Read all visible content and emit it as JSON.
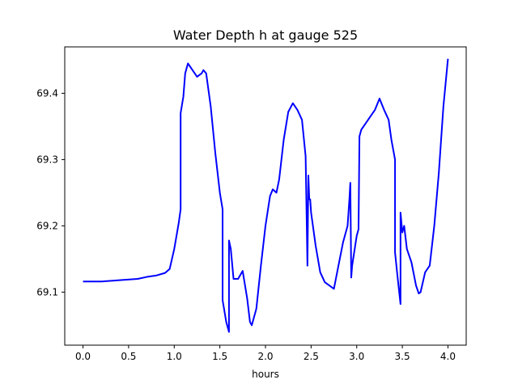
{
  "chart_data": {
    "type": "line",
    "title": "Water Depth h at gauge 525",
    "xlabel": "hours",
    "ylabel": "",
    "xlim": [
      -0.2,
      4.2
    ],
    "ylim": [
      69.02,
      69.47
    ],
    "x_ticks": [
      0.0,
      0.5,
      1.0,
      1.5,
      2.0,
      2.5,
      3.0,
      3.5,
      4.0
    ],
    "x_tick_labels": [
      "0.0",
      "0.5",
      "1.0",
      "1.5",
      "2.0",
      "2.5",
      "3.0",
      "3.5",
      "4.0"
    ],
    "y_ticks": [
      69.1,
      69.2,
      69.3,
      69.4
    ],
    "y_tick_labels": [
      "69.1",
      "69.2",
      "69.3",
      "69.4"
    ],
    "grid": false,
    "legend": "none",
    "line_color": "#0000ff",
    "series": [
      {
        "x": [
          0.0,
          0.2,
          0.4,
          0.6,
          0.7,
          0.8,
          0.9,
          0.95,
          1.0,
          1.05,
          1.07,
          1.07,
          1.1,
          1.12,
          1.15,
          1.2,
          1.25,
          1.3,
          1.32,
          1.35,
          1.4,
          1.45,
          1.5,
          1.53,
          1.53,
          1.57,
          1.6,
          1.6,
          1.62,
          1.65,
          1.7,
          1.75,
          1.8,
          1.83,
          1.85,
          1.9,
          1.95,
          2.0,
          2.05,
          2.08,
          2.12,
          2.15,
          2.2,
          2.25,
          2.3,
          2.35,
          2.4,
          2.44,
          2.46,
          2.47,
          2.48,
          2.49,
          2.5,
          2.55,
          2.6,
          2.65,
          2.7,
          2.75,
          2.8,
          2.85,
          2.9,
          2.92,
          2.93,
          2.94,
          2.95,
          3.0,
          3.02,
          3.03,
          3.05,
          3.1,
          3.15,
          3.2,
          3.25,
          3.3,
          3.35,
          3.38,
          3.42,
          3.42,
          3.45,
          3.48,
          3.48,
          3.5,
          3.52,
          3.55,
          3.6,
          3.65,
          3.68,
          3.7,
          3.75,
          3.8,
          3.85,
          3.9,
          3.95,
          4.0
        ],
        "values": [
          69.116,
          69.116,
          69.118,
          69.12,
          69.123,
          69.125,
          69.129,
          69.135,
          69.165,
          69.205,
          69.225,
          69.37,
          69.395,
          69.43,
          69.445,
          69.435,
          69.425,
          69.43,
          69.435,
          69.43,
          69.38,
          69.31,
          69.25,
          69.225,
          69.088,
          69.055,
          69.04,
          69.178,
          69.165,
          69.12,
          69.12,
          69.132,
          69.09,
          69.055,
          69.05,
          69.075,
          69.14,
          69.2,
          69.245,
          69.255,
          69.25,
          69.27,
          69.33,
          69.372,
          69.385,
          69.375,
          69.36,
          69.305,
          69.14,
          69.276,
          69.24,
          69.24,
          69.22,
          69.17,
          69.13,
          69.115,
          69.11,
          69.105,
          69.14,
          69.175,
          69.2,
          69.24,
          69.265,
          69.122,
          69.14,
          69.185,
          69.195,
          69.335,
          69.345,
          69.355,
          69.365,
          69.375,
          69.392,
          69.375,
          69.36,
          69.33,
          69.3,
          69.16,
          69.12,
          69.082,
          69.22,
          69.19,
          69.2,
          69.165,
          69.145,
          69.11,
          69.098,
          69.1,
          69.13,
          69.14,
          69.2,
          69.28,
          69.38,
          69.452
        ]
      }
    ]
  }
}
